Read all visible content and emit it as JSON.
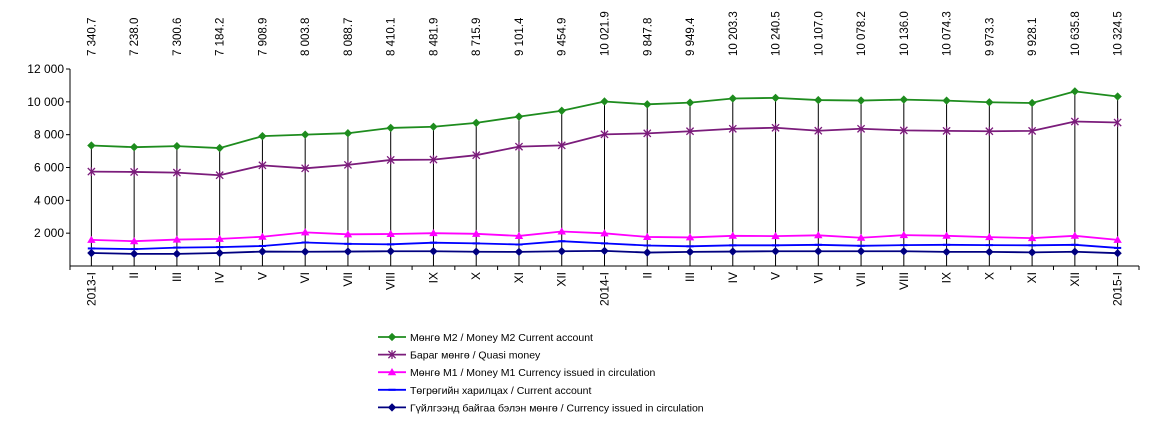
{
  "chart_data": {
    "type": "line",
    "categories": [
      "2013-I",
      "II",
      "III",
      "IV",
      "V",
      "VI",
      "VII",
      "VIII",
      "IX",
      "X",
      "XI",
      "XII",
      "2014-I",
      "II",
      "III",
      "IV",
      "V",
      "VI",
      "VII",
      "VIII",
      "IX",
      "X",
      "XI",
      "XII",
      "2015-I"
    ],
    "ylim": [
      0,
      12000
    ],
    "yticks": [
      2000,
      4000,
      6000,
      8000,
      10000,
      12000
    ],
    "ytick_labels": [
      "2 000",
      "4 000",
      "6 000",
      "8 000",
      "10 000",
      "12 000"
    ],
    "grid": false,
    "drop_lines": true,
    "legend_position": "bottom",
    "series": [
      {
        "name": "Мөнгө М2 /   Money M2  Current account",
        "color": "#1e8c1e",
        "marker": "diamond",
        "values": [
          7340.7,
          7238.0,
          7300.6,
          7184.2,
          7908.9,
          8003.8,
          8088.7,
          8410.1,
          8481.9,
          8715.9,
          9101.4,
          9454.9,
          10021.9,
          9847.8,
          9949.4,
          10203.3,
          10240.5,
          10107.0,
          10078.2,
          10136.0,
          10074.3,
          9973.3,
          9928.1,
          10635.8,
          10324.5
        ]
      },
      {
        "name": "Бараг мөнгө / Quasi money",
        "color": "#7b1c7b",
        "marker": "star",
        "values": [
          5750,
          5730,
          5690,
          5530,
          6130,
          5950,
          6160,
          6460,
          6480,
          6750,
          7270,
          7350,
          8020,
          8080,
          8210,
          8360,
          8420,
          8240,
          8360,
          8260,
          8230,
          8210,
          8230,
          8800,
          8740
        ]
      },
      {
        "name": "Мөнгө М1 /  Money M1 Currency issued  in circulation",
        "color": "#ff00ff",
        "marker": "triangle",
        "values": [
          1590,
          1510,
          1610,
          1650,
          1780,
          2050,
          1930,
          1950,
          2000,
          1960,
          1830,
          2100,
          1990,
          1770,
          1740,
          1840,
          1820,
          1870,
          1720,
          1880,
          1840,
          1760,
          1700,
          1840,
          1590
        ]
      },
      {
        "name": "Төгрөгийн харилцах / Current account",
        "color": "#0000ff",
        "marker": "dash",
        "values": [
          1070,
          1030,
          1120,
          1150,
          1220,
          1430,
          1350,
          1320,
          1420,
          1380,
          1310,
          1510,
          1380,
          1250,
          1200,
          1260,
          1260,
          1290,
          1230,
          1270,
          1290,
          1270,
          1260,
          1290,
          1100
        ]
      },
      {
        "name": "Гүйлгээнд байгаа бэлэн мөнгө / Currency issued  in circulation",
        "color": "#000080",
        "marker": "diamond",
        "values": [
          790,
          740,
          740,
          790,
          880,
          870,
          880,
          900,
          900,
          870,
          860,
          900,
          920,
          820,
          860,
          880,
          900,
          900,
          900,
          900,
          860,
          860,
          830,
          870,
          780
        ]
      }
    ],
    "data_labels": [
      "7 340.7",
      "7 238.0",
      "7 300.6",
      "7 184.2",
      "7 908.9",
      "8 003.8",
      "8 088.7",
      "8 410.1",
      "8 481.9",
      "8 715.9",
      "9 101.4",
      "9 454.9",
      "10 021.9",
      "9 847.8",
      "9 949.4",
      "10 203.3",
      "10 240.5",
      "10 107.0",
      "10 078.2",
      "10 136.0",
      "10 074.3",
      "9 973.3",
      "9 928.1",
      "10 635.8",
      "10 324.5"
    ]
  }
}
